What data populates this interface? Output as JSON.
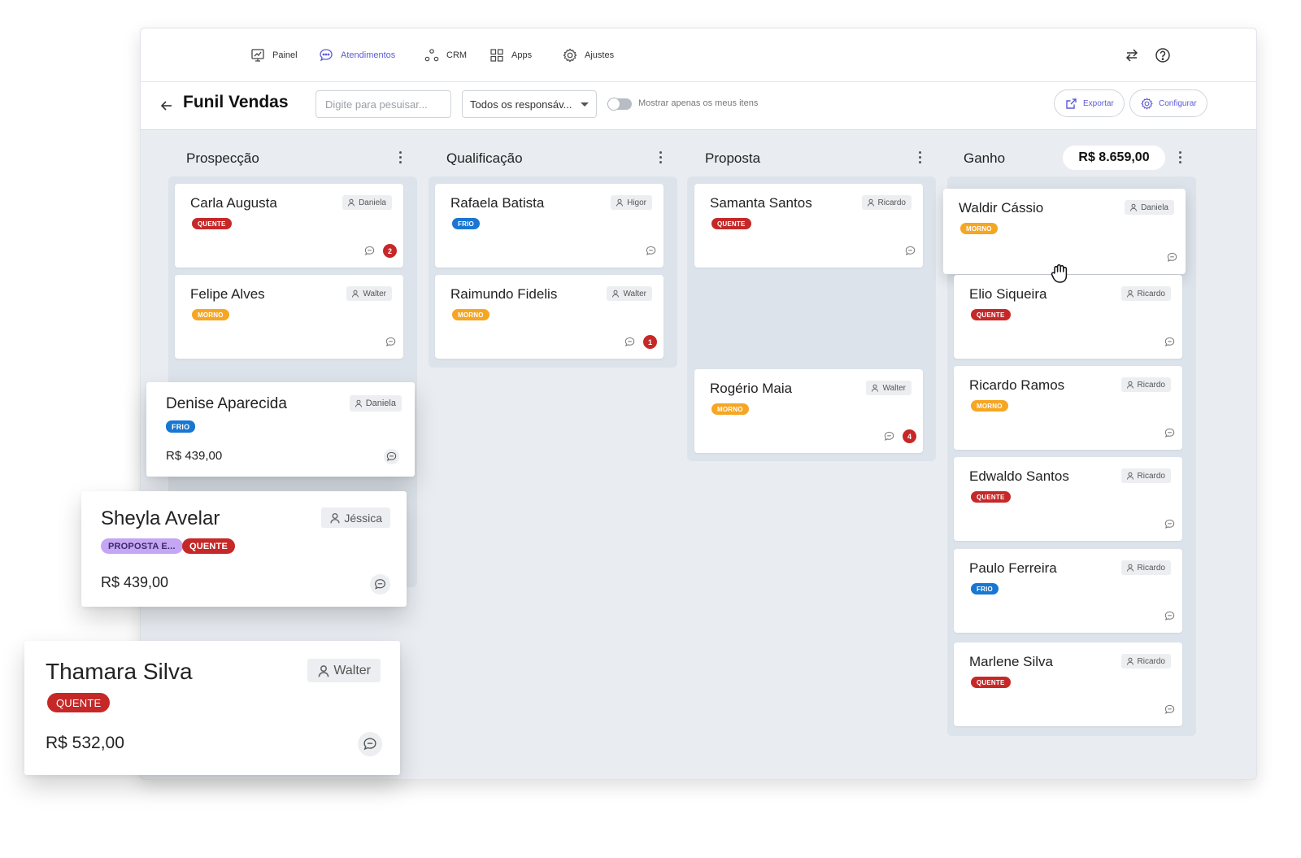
{
  "nav": {
    "items": [
      {
        "label": "Painel",
        "icon": "presentation-chart-icon"
      },
      {
        "label": "Atendimentos",
        "icon": "chat-bubble-icon"
      },
      {
        "label": "CRM",
        "icon": "nodes-icon"
      },
      {
        "label": "Apps",
        "icon": "grid-icon"
      },
      {
        "label": "Ajustes",
        "icon": "gear-icon"
      }
    ],
    "active": "Atendimentos",
    "right_icons": [
      "swap-arrows-icon",
      "help-circle-icon"
    ]
  },
  "toolbar": {
    "title": "Funil Vendas",
    "search_placeholder": "Digite para pesuisar...",
    "responsible_select": "Todos os responsáv...",
    "toggle_label": "Mostrar apenas os meus itens",
    "toggle_on": false,
    "export_label": "Exportar",
    "configure_label": "Configurar"
  },
  "columns": [
    {
      "title": "Prospecção",
      "cards": [
        {
          "name": "Carla Augusta",
          "owner": "Daniela",
          "tags": [
            "QUENTE"
          ],
          "unread": "2"
        },
        {
          "name": "Felipe Alves",
          "owner": "Walter",
          "tags": [
            "MORNO"
          ],
          "unread": ""
        }
      ]
    },
    {
      "title": "Qualificação",
      "cards": [
        {
          "name": "Rafaela Batista",
          "owner": "Higor",
          "tags": [
            "FRIO"
          ],
          "unread": ""
        },
        {
          "name": "Raimundo Fidelis",
          "owner": "Walter",
          "tags": [
            "MORNO"
          ],
          "unread": "1"
        }
      ]
    },
    {
      "title": "Proposta",
      "cards": [
        {
          "name": "Samanta Santos",
          "owner": "Ricardo",
          "tags": [
            "QUENTE"
          ],
          "unread": ""
        },
        {
          "name": "Rogério Maia",
          "owner": "Walter",
          "tags": [
            "MORNO"
          ],
          "unread": "4"
        }
      ]
    },
    {
      "title": "Ganho",
      "total": "R$ 8.659,00",
      "cards": [
        {
          "name": "Waldir Cássio",
          "owner": "Daniela",
          "tags": [
            "MORNO"
          ],
          "unread": ""
        },
        {
          "name": "Elio Siqueira",
          "owner": "Ricardo",
          "tags": [
            "QUENTE"
          ],
          "unread": ""
        },
        {
          "name": "Ricardo Ramos",
          "owner": "Ricardo",
          "tags": [
            "MORNO"
          ],
          "unread": ""
        },
        {
          "name": "Edwaldo Santos",
          "owner": "Ricardo",
          "tags": [
            "QUENTE"
          ],
          "unread": ""
        },
        {
          "name": "Paulo Ferreira",
          "owner": "Ricardo",
          "tags": [
            "FRIO"
          ],
          "unread": ""
        },
        {
          "name": "Marlene Silva",
          "owner": "Ricardo",
          "tags": [
            "QUENTE"
          ],
          "unread": ""
        }
      ]
    }
  ],
  "floating_cards": [
    {
      "name": "Denise Aparecida",
      "owner": "Daniela",
      "tags": [
        "FRIO"
      ],
      "price": "R$ 439,00"
    },
    {
      "name": "Sheyla Avelar",
      "owner": "Jéssica",
      "tags": [
        "PROPOSTA E...",
        "QUENTE"
      ],
      "price": "R$ 439,00"
    },
    {
      "name": "Thamara Silva",
      "owner": "Walter",
      "tags": [
        "QUENTE"
      ],
      "price": "R$ 532,00"
    }
  ],
  "colors": {
    "accent": "#5b5bd6",
    "quente": "#c62828",
    "morno": "#f5a623",
    "frio": "#1976d2",
    "proposta": "#c4a6f5",
    "board_bg": "#e9edf2",
    "lane_bg": "#dde3ea"
  }
}
